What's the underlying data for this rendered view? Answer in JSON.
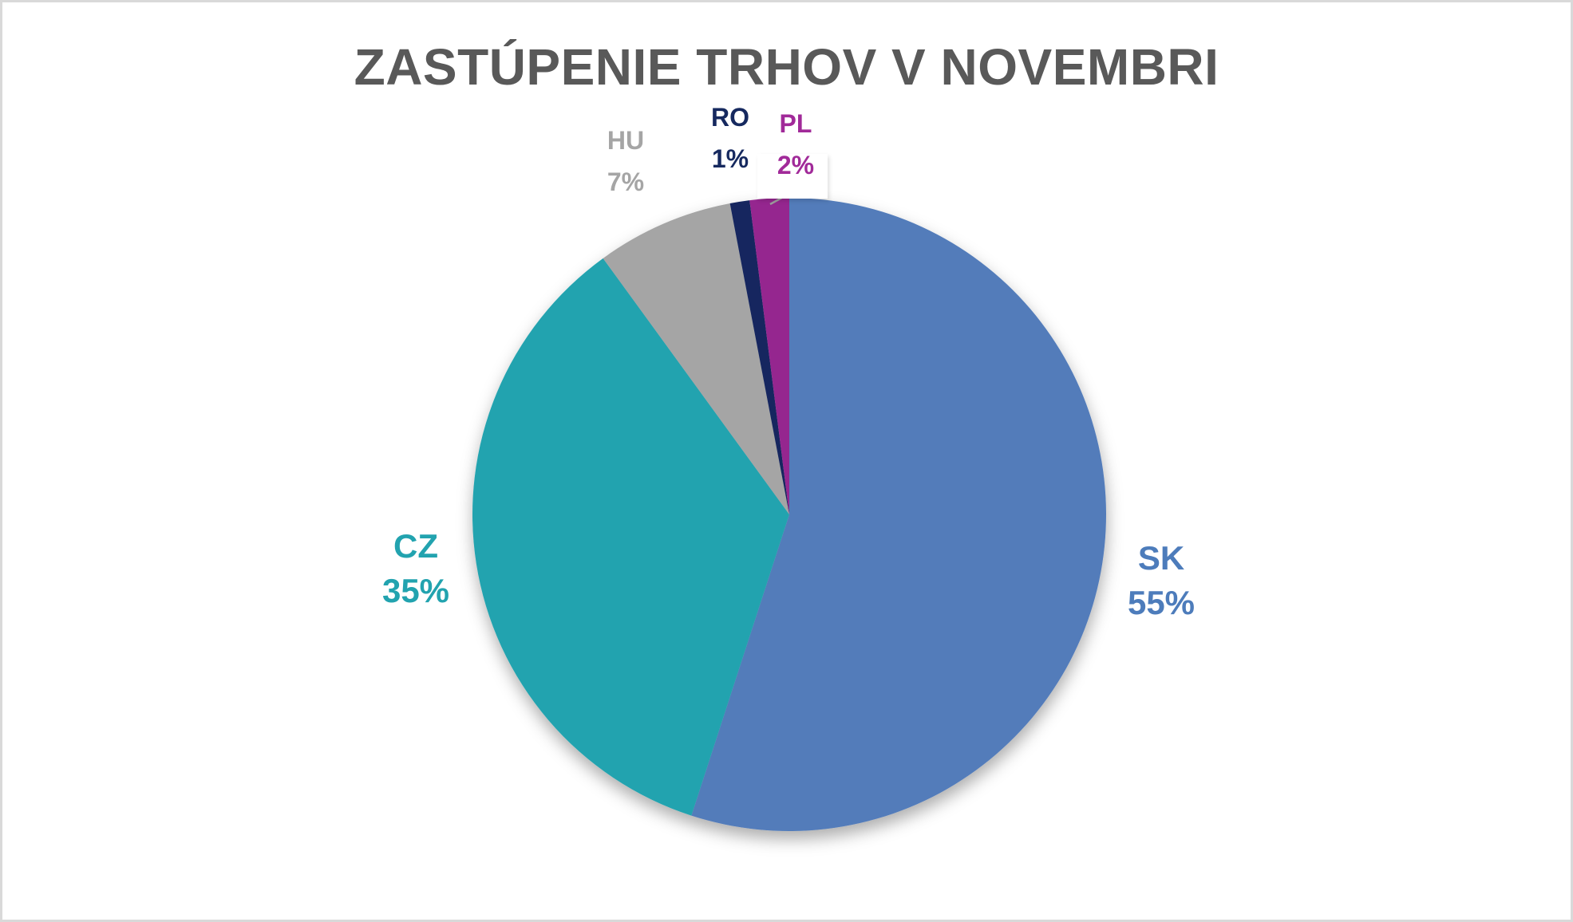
{
  "page": {
    "background_color": "#ffffff",
    "border_color": "#d9d9d9"
  },
  "chart_data": {
    "type": "pie",
    "title": "ZASTÚPENIE TRHOV V NOVEMBRI",
    "title_color": "#595959",
    "units": "percent",
    "legend": "none",
    "label_style": "category name and percent, outside slices",
    "start_angle_deg": 0,
    "direction": "clockwise",
    "slices": [
      {
        "label": "SK",
        "value_pct": 55,
        "display": "55%",
        "color": "#527cba",
        "label_color": "#4d7cbb"
      },
      {
        "label": "CZ",
        "value_pct": 35,
        "display": "35%",
        "color": "#22a3af",
        "label_color": "#22a3af"
      },
      {
        "label": "HU",
        "value_pct": 7,
        "display": "7%",
        "color": "#a5a5a5",
        "label_color": "#a5a5a5"
      },
      {
        "label": "RO",
        "value_pct": 1,
        "display": "1%",
        "color": "#13265e",
        "label_color": "#16295f"
      },
      {
        "label": "PL",
        "value_pct": 2,
        "display": "2%",
        "color": "#95288f",
        "label_color": "#a12a99"
      }
    ],
    "callout": {
      "for_slice": "PL",
      "leader_line_color": "#9e9e9e"
    }
  }
}
